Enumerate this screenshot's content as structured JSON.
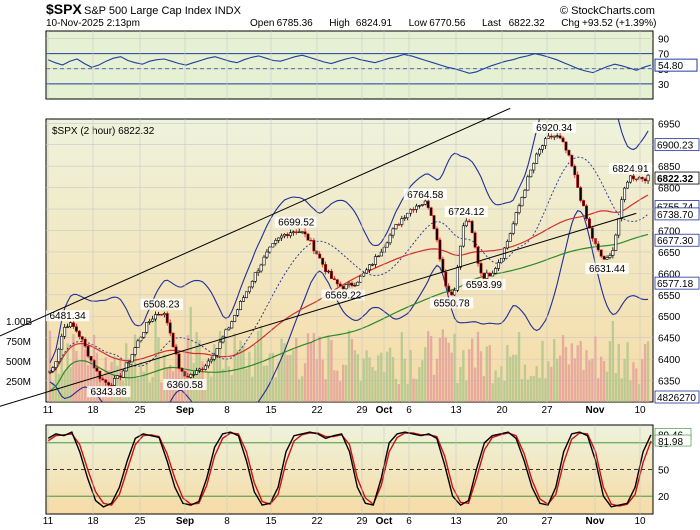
{
  "header": {
    "symbol": "$SPX",
    "name": "S&P 500 Large Cap Index",
    "exchange": "INDX",
    "watermark": "© StockCharts.com",
    "datetime": "10-Nov-2025 2:13pm",
    "open_label": "Open",
    "open": "6785.36",
    "high_label": "High",
    "high": "6824.91",
    "low_label": "Low",
    "low": "6770.56",
    "last_label": "Last",
    "last": "6822.32",
    "chg_label": "Chg",
    "chg": "+93.52 (+1.39%)"
  },
  "chart_data": [
    {
      "type": "line",
      "panel": "rsi",
      "yticks": [
        90,
        70,
        50,
        30
      ],
      "ylim": [
        10,
        100
      ],
      "current_label": "54.80",
      "current": 54.8,
      "levels": [
        70,
        30
      ],
      "values": [
        62,
        58,
        55,
        60,
        63,
        57,
        52,
        55,
        60,
        64,
        66,
        61,
        58,
        56,
        60,
        62,
        63,
        60,
        57,
        55,
        58,
        61,
        64,
        66,
        63,
        60,
        58,
        62,
        65,
        67,
        64,
        61,
        60,
        63,
        66,
        68,
        65,
        62,
        59,
        57,
        60,
        63,
        65,
        62,
        60,
        58,
        61,
        64,
        66,
        69,
        67,
        64,
        61,
        58,
        55,
        52,
        50,
        47,
        44,
        46,
        50,
        54,
        57,
        60,
        62,
        65,
        67,
        70,
        68,
        65,
        62,
        58,
        54,
        50,
        47,
        45,
        49,
        53,
        56,
        54,
        51,
        48,
        52,
        55
      ]
    },
    {
      "type": "candlestick",
      "panel": "price",
      "title": "$SPX (2 hour) 6822.32",
      "ylim": [
        6300,
        6960
      ],
      "yticks": [
        6950,
        6900,
        6850,
        6800,
        6750,
        6700,
        6650,
        6600,
        6550,
        6500,
        6450,
        6400,
        6350
      ],
      "x_tick_labels": [
        "11",
        "18",
        "25",
        "Sep",
        "8",
        "15",
        "22",
        "29",
        "Oct",
        "6",
        "13",
        "20",
        "27",
        "Nov",
        "10"
      ],
      "right_labels": [
        {
          "text": "6900.23",
          "value": 6900.23
        },
        {
          "text": "6822.32",
          "value": 6822.32,
          "bold": true
        },
        {
          "text": "6755.74",
          "value": 6755.74
        },
        {
          "text": "6738.70",
          "value": 6738.7
        },
        {
          "text": "6677.30",
          "value": 6677.3
        },
        {
          "text": "6577.18",
          "value": 6577.18
        },
        {
          "text": "4826270",
          "value": null
        }
      ],
      "annotations": [
        {
          "text": "6481.34",
          "i": 6,
          "y": 6481.34
        },
        {
          "text": "6343.86",
          "i": 20,
          "y": 6343.86
        },
        {
          "text": "6508.23",
          "i": 38,
          "y": 6508.23
        },
        {
          "text": "6360.58",
          "i": 46,
          "y": 6360.58
        },
        {
          "text": "6699.52",
          "i": 84,
          "y": 6699.52
        },
        {
          "text": "6569.22",
          "i": 100,
          "y": 6569.22
        },
        {
          "text": "6764.58",
          "i": 128,
          "y": 6764.58
        },
        {
          "text": "6724.12",
          "i": 142,
          "y": 6724.12
        },
        {
          "text": "6550.78",
          "i": 137,
          "y": 6550.78
        },
        {
          "text": "6593.99",
          "i": 148,
          "y": 6593.99
        },
        {
          "text": "6920.34",
          "i": 172,
          "y": 6920.34
        },
        {
          "text": "6824.91",
          "i": 198,
          "y": 6824.91
        },
        {
          "text": "6631.44",
          "i": 190,
          "y": 6631.44
        }
      ],
      "volume_ticks": [
        "1.00B",
        "750M",
        "500M",
        "250M"
      ],
      "trendlines": [
        {
          "x1": 0,
          "y1": 6482,
          "x2": 157,
          "y2": 6985
        },
        {
          "x1": 0,
          "y1": 6318,
          "x2": 200,
          "y2": 6740
        }
      ]
    },
    {
      "type": "line",
      "panel": "stochastic",
      "ylim": [
        0,
        100
      ],
      "yticks": [
        80,
        50,
        20
      ],
      "current_labels": [
        "89.46",
        "81.98"
      ],
      "k": [
        85,
        90,
        88,
        92,
        70,
        40,
        15,
        8,
        12,
        30,
        60,
        85,
        90,
        88,
        86,
        60,
        30,
        12,
        10,
        14,
        40,
        75,
        90,
        92,
        88,
        60,
        25,
        10,
        12,
        30,
        70,
        88,
        90,
        92,
        90,
        85,
        88,
        90,
        70,
        30,
        12,
        10,
        40,
        80,
        90,
        92,
        90,
        88,
        90,
        85,
        55,
        20,
        10,
        15,
        50,
        80,
        88,
        90,
        92,
        85,
        60,
        30,
        12,
        10,
        30,
        70,
        90,
        92,
        88,
        60,
        20,
        8,
        10,
        12,
        30,
        70,
        89
      ],
      "d": [
        82,
        88,
        89,
        90,
        78,
        50,
        25,
        12,
        10,
        22,
        50,
        78,
        88,
        89,
        87,
        68,
        40,
        18,
        11,
        12,
        32,
        65,
        85,
        91,
        90,
        70,
        35,
        14,
        11,
        22,
        58,
        82,
        89,
        91,
        91,
        87,
        87,
        89,
        78,
        40,
        18,
        11,
        32,
        70,
        86,
        91,
        91,
        89,
        89,
        87,
        65,
        30,
        13,
        12,
        40,
        72,
        86,
        89,
        91,
        88,
        68,
        38,
        17,
        11,
        22,
        58,
        84,
        91,
        90,
        70,
        30,
        11,
        9,
        11,
        22,
        58,
        82
      ]
    }
  ]
}
